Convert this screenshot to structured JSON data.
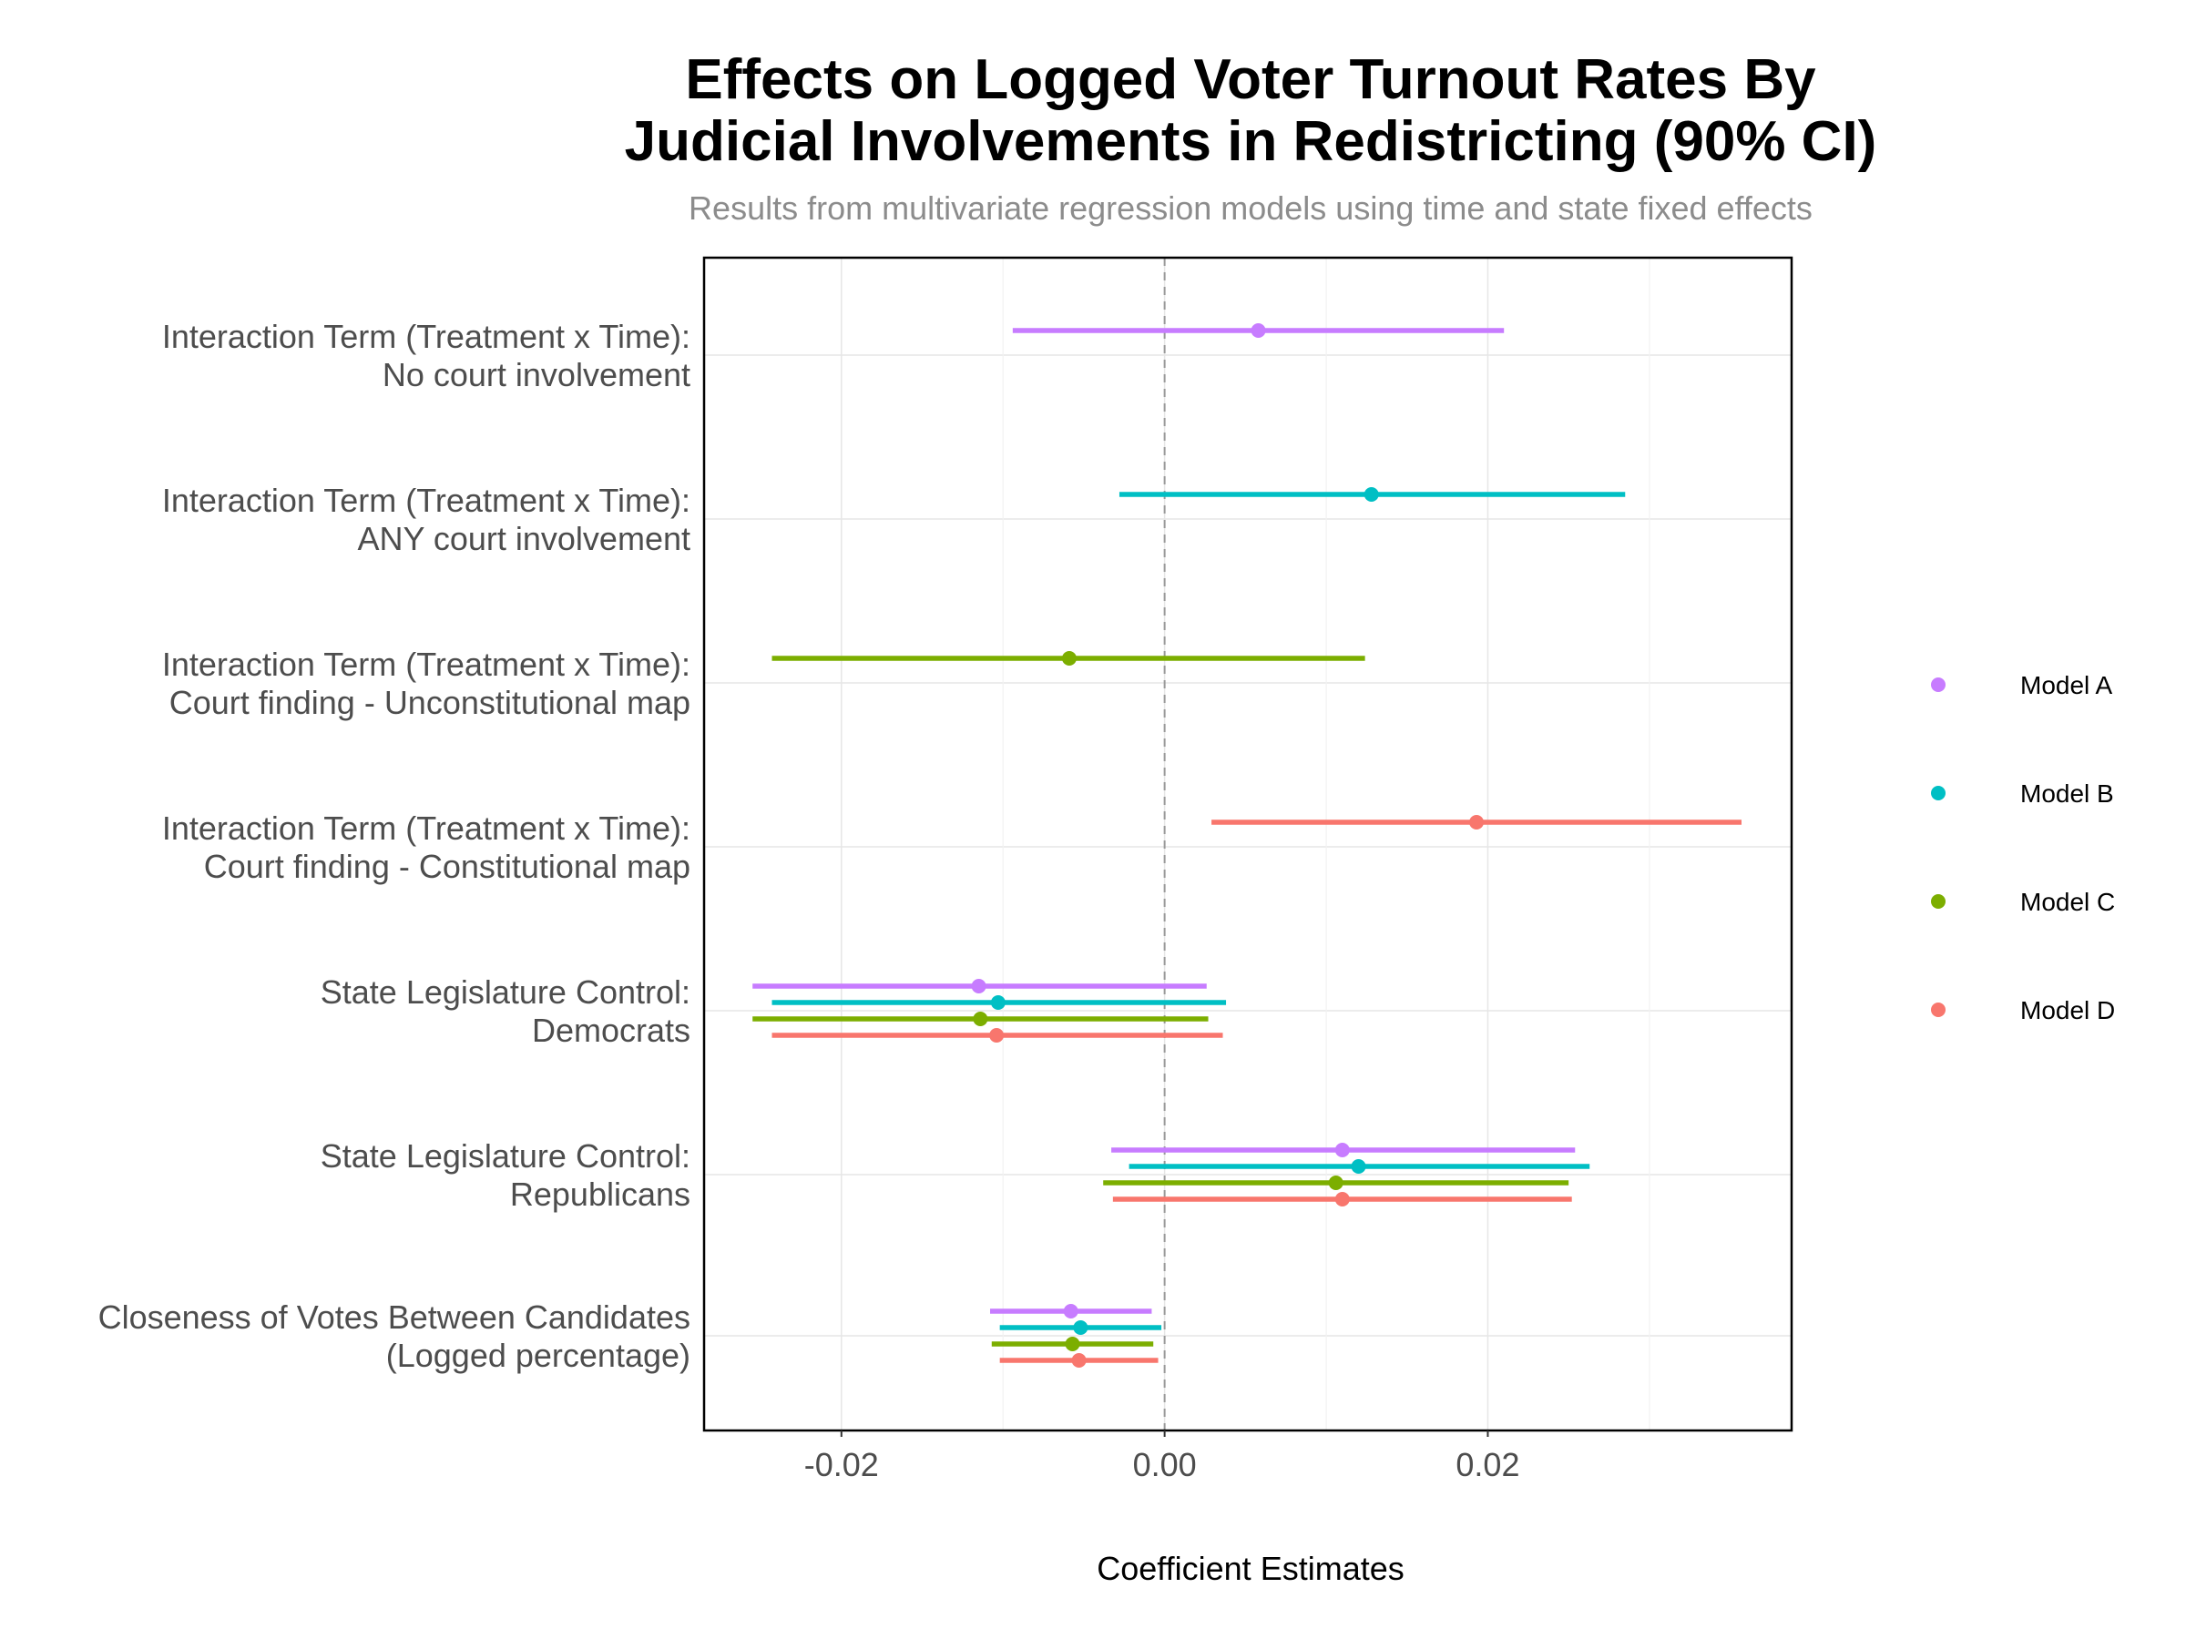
{
  "chart_data": {
    "type": "scatter",
    "title_lines": [
      "Effects on Logged Voter Turnout Rates By",
      "Judicial Involvements in Redistricting (90% CI)"
    ],
    "subtitle": "Results from multivariate regression models using time and state fixed effects",
    "xlabel": "Coefficient Estimates",
    "ylabel": "",
    "xlim": [
      -0.0285,
      0.0388
    ],
    "x_ticks": [
      {
        "value": -0.02,
        "label": "-0.02"
      },
      {
        "value": 0.0,
        "label": "0.00"
      },
      {
        "value": 0.02,
        "label": "0.02"
      }
    ],
    "x_minor_ticks": [
      -0.01,
      0.01,
      0.03
    ],
    "reference_line": 0,
    "grid": true,
    "legend_position": "right",
    "categories": [
      {
        "lines": [
          "Interaction Term (Treatment x Time):",
          "No court involvement"
        ]
      },
      {
        "lines": [
          "Interaction Term (Treatment x Time):",
          "ANY court involvement"
        ]
      },
      {
        "lines": [
          "Interaction Term (Treatment x Time):",
          "Court finding - Unconstitutional map"
        ]
      },
      {
        "lines": [
          "Interaction Term (Treatment x Time):",
          "Court finding - Constitutional map"
        ]
      },
      {
        "lines": [
          "State Legislature Control:",
          "Democrats"
        ]
      },
      {
        "lines": [
          "State Legislature Control:",
          "Republicans"
        ]
      },
      {
        "lines": [
          "Closeness of Votes Between Candidates",
          "(Logged percentage)"
        ]
      }
    ],
    "series": [
      {
        "name": "Model A",
        "color": "#c77cff",
        "points": [
          {
            "category": 0,
            "estimate": 0.0058,
            "low": -0.0094,
            "high": 0.021
          },
          {
            "category": 4,
            "estimate": -0.0115,
            "low": -0.0255,
            "high": 0.0026
          },
          {
            "category": 5,
            "estimate": 0.011,
            "low": -0.0033,
            "high": 0.0254
          },
          {
            "category": 6,
            "estimate": -0.0058,
            "low": -0.0108,
            "high": -0.0008
          }
        ]
      },
      {
        "name": "Model B",
        "color": "#00bfc4",
        "points": [
          {
            "category": 1,
            "estimate": 0.0128,
            "low": -0.0028,
            "high": 0.0285
          },
          {
            "category": 4,
            "estimate": -0.0103,
            "low": -0.0243,
            "high": 0.0038
          },
          {
            "category": 5,
            "estimate": 0.012,
            "low": -0.0022,
            "high": 0.0263
          },
          {
            "category": 6,
            "estimate": -0.0052,
            "low": -0.0102,
            "high": -0.0002
          }
        ]
      },
      {
        "name": "Model C",
        "color": "#7cae00",
        "points": [
          {
            "category": 2,
            "estimate": -0.0059,
            "low": -0.0243,
            "high": 0.0124
          },
          {
            "category": 4,
            "estimate": -0.0114,
            "low": -0.0255,
            "high": 0.0027
          },
          {
            "category": 5,
            "estimate": 0.0106,
            "low": -0.0038,
            "high": 0.025
          },
          {
            "category": 6,
            "estimate": -0.0057,
            "low": -0.0107,
            "high": -0.0007
          }
        ]
      },
      {
        "name": "Model D",
        "color": "#f8766d",
        "points": [
          {
            "category": 3,
            "estimate": 0.0193,
            "low": 0.0029,
            "high": 0.0357
          },
          {
            "category": 4,
            "estimate": -0.0104,
            "low": -0.0243,
            "high": 0.0036
          },
          {
            "category": 5,
            "estimate": 0.011,
            "low": -0.0032,
            "high": 0.0252
          },
          {
            "category": 6,
            "estimate": -0.0053,
            "low": -0.0102,
            "high": -0.0004
          }
        ]
      }
    ]
  }
}
